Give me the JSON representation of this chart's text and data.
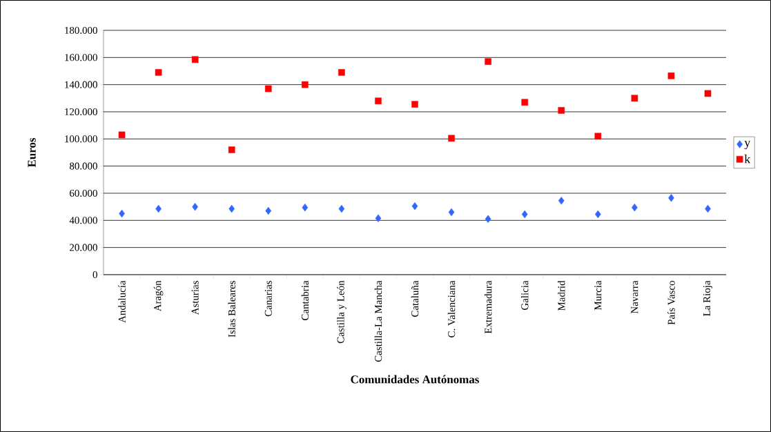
{
  "chart_data": {
    "type": "scatter",
    "xlabel": "Comunidades Autónomas",
    "ylabel": "Euros",
    "categories": [
      "Andalucía",
      "Aragón",
      "Asturias",
      "Islas Baleares",
      "Canarias",
      "Cantabria",
      "Castilla y León",
      "Castilla-La Mancha",
      "Cataluña",
      "C. Valenciana",
      "Extremadura",
      "Galicia",
      "Madrid",
      "Murcia",
      "Navarra",
      "País Vasco",
      "La Rioja"
    ],
    "series": [
      {
        "name": "y",
        "color": "#3366ff",
        "marker": "diamond",
        "values": [
          45000,
          48500,
          50000,
          48500,
          47000,
          49500,
          48500,
          41500,
          50500,
          46000,
          41000,
          44500,
          54500,
          44500,
          49500,
          56500,
          48500
        ]
      },
      {
        "name": "k",
        "color": "#ff0000",
        "marker": "square",
        "values": [
          103000,
          149000,
          158500,
          92000,
          137000,
          140000,
          149000,
          128000,
          125500,
          100500,
          157000,
          127000,
          121000,
          102000,
          130000,
          146500,
          133500
        ]
      }
    ],
    "ylim": [
      0,
      180000
    ],
    "yticks": [
      0,
      {
        "value": 20000,
        "label": "20.000"
      },
      {
        "value": 40000,
        "label": "40.000"
      },
      {
        "value": 60000,
        "label": "60.000"
      },
      {
        "value": 80000,
        "label": "80.000"
      },
      {
        "value": 100000,
        "label": "100.000"
      },
      {
        "value": 120000,
        "label": "120.000"
      },
      {
        "value": 140000,
        "label": "140.000"
      },
      {
        "value": 160000,
        "label": "160.000"
      },
      {
        "value": 180000,
        "label": "180.000"
      }
    ],
    "grid": "y",
    "legend": "right"
  }
}
